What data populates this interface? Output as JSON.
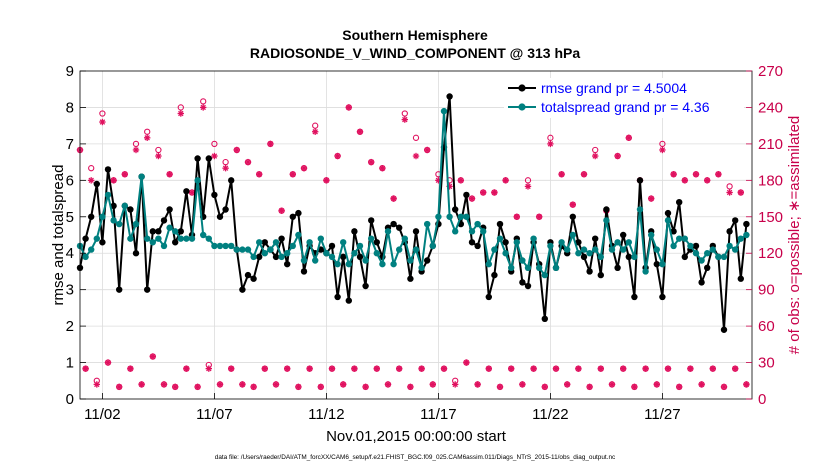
{
  "chart_data": {
    "type": "line",
    "title": "Southern Hemisphere",
    "subtitle": "RADIOSONDE_V_WIND_COMPONENT @ 313 hPa",
    "xlabel": "Nov.01,2015 00:00:00 start",
    "ylabel_left": "rmse and totalspread",
    "ylabel_right": "# of obs: o=possible; ∗=assimilated",
    "footer": "data file: /Users/raeder/DAI/ATM_forcXX/CAM6_setup/f.e21.FHIST_BGC.f09_025.CAM6assim.011/Diags_NTrS_2015-11/obs_diag_output.nc",
    "x_tick_labels": [
      "11/02",
      "11/07",
      "11/12",
      "11/17",
      "11/22",
      "11/27"
    ],
    "x_tick_days": [
      2,
      7,
      12,
      17,
      22,
      27
    ],
    "xlim_days": [
      1,
      31
    ],
    "ylim_left": [
      0,
      9
    ],
    "yticks_left": [
      0,
      1,
      2,
      3,
      4,
      5,
      6,
      7,
      8,
      9
    ],
    "ylim_right": [
      0,
      270
    ],
    "yticks_right": [
      0,
      30,
      60,
      90,
      120,
      150,
      180,
      210,
      240,
      270
    ],
    "legend_position": "top-right",
    "grid": true,
    "colors": {
      "rmse": "#000000",
      "totalspread": "#008080",
      "obs": "#E0115F",
      "legend_text": "#0000FF"
    },
    "series": [
      {
        "name": "rmse grand pr = 4.5004",
        "axis": "left",
        "x_days": [
          1.0,
          1.25,
          1.5,
          1.75,
          2.0,
          2.25,
          2.5,
          2.75,
          3.0,
          3.25,
          3.5,
          3.75,
          4.0,
          4.25,
          4.5,
          4.75,
          5.0,
          5.25,
          5.5,
          5.75,
          6.0,
          6.25,
          6.5,
          6.75,
          7.0,
          7.25,
          7.5,
          7.75,
          8.0,
          8.25,
          8.5,
          8.75,
          9.0,
          9.25,
          9.5,
          9.75,
          10.0,
          10.25,
          10.5,
          10.75,
          11.0,
          11.25,
          11.5,
          11.75,
          12.0,
          12.25,
          12.5,
          12.75,
          13.0,
          13.25,
          13.5,
          13.75,
          14.0,
          14.25,
          14.5,
          14.75,
          15.0,
          15.25,
          15.5,
          15.75,
          16.0,
          16.25,
          16.5,
          16.75,
          17.0,
          17.25,
          17.5,
          17.75,
          18.0,
          18.25,
          18.5,
          18.75,
          19.0,
          19.25,
          19.5,
          19.75,
          20.0,
          20.25,
          20.5,
          20.75,
          21.0,
          21.25,
          21.5,
          21.75,
          22.0,
          22.25,
          22.5,
          22.75,
          23.0,
          23.25,
          23.5,
          23.75,
          24.0,
          24.25,
          24.5,
          24.75,
          25.0,
          25.25,
          25.5,
          25.75,
          26.0,
          26.25,
          26.5,
          26.75,
          27.0,
          27.25,
          27.5,
          27.75,
          28.0,
          28.25,
          28.5,
          28.75,
          29.0,
          29.25,
          29.5,
          29.75,
          30.0,
          30.25,
          30.5,
          30.75
        ],
        "values": [
          3.6,
          4.4,
          5.0,
          5.9,
          4.3,
          6.3,
          5.3,
          3.0,
          5.3,
          5.2,
          4.0,
          6.1,
          3.0,
          4.6,
          4.6,
          4.9,
          5.2,
          4.3,
          4.6,
          5.7,
          4.5,
          6.6,
          5.0,
          6.6,
          5.6,
          5.0,
          5.2,
          6.0,
          4.1,
          3.0,
          3.4,
          3.3,
          3.9,
          4.3,
          4.1,
          3.9,
          4.4,
          3.7,
          5.0,
          5.1,
          3.5,
          4.2,
          4.0,
          4.1,
          4.0,
          4.2,
          2.8,
          3.9,
          2.7,
          4.6,
          3.9,
          3.1,
          4.9,
          4.3,
          3.9,
          4.7,
          4.8,
          4.7,
          4.3,
          3.3,
          4.6,
          3.5,
          3.8,
          4.2,
          4.8,
          6.9,
          8.3,
          5.2,
          4.8,
          5.6,
          4.3,
          4.2,
          4.7,
          2.8,
          3.4,
          4.8,
          4.3,
          3.5,
          4.4,
          3.2,
          3.1,
          4.3,
          3.7,
          2.2,
          4.3,
          3.6,
          4.2,
          4.0,
          5.0,
          4.3,
          3.9,
          3.5,
          4.4,
          3.4,
          5.2,
          4.2,
          3.6,
          4.5,
          3.9,
          2.8,
          6.0,
          3.6,
          4.6,
          3.7,
          2.8,
          5.1,
          4.6,
          5.4,
          3.9,
          4.1,
          4.2,
          3.2,
          3.6,
          4.2,
          3.9,
          1.9,
          4.6,
          4.9,
          3.3,
          4.8
        ],
        "marker": "filled-circle"
      },
      {
        "name": "totalspread grand pr = 4.36",
        "axis": "left",
        "x_days": [
          1.0,
          1.25,
          1.5,
          1.75,
          2.0,
          2.25,
          2.5,
          2.75,
          3.0,
          3.25,
          3.5,
          3.75,
          4.0,
          4.25,
          4.5,
          4.75,
          5.0,
          5.25,
          5.5,
          5.75,
          6.0,
          6.25,
          6.5,
          6.75,
          7.0,
          7.25,
          7.5,
          7.75,
          8.0,
          8.25,
          8.5,
          8.75,
          9.0,
          9.25,
          9.5,
          9.75,
          10.0,
          10.25,
          10.5,
          10.75,
          11.0,
          11.25,
          11.5,
          11.75,
          12.0,
          12.25,
          12.5,
          12.75,
          13.0,
          13.25,
          13.5,
          13.75,
          14.0,
          14.25,
          14.5,
          14.75,
          15.0,
          15.25,
          15.5,
          15.75,
          16.0,
          16.25,
          16.5,
          16.75,
          17.0,
          17.25,
          17.5,
          17.75,
          18.0,
          18.25,
          18.5,
          18.75,
          19.0,
          19.25,
          19.5,
          19.75,
          20.0,
          20.25,
          20.5,
          20.75,
          21.0,
          21.25,
          21.5,
          21.75,
          22.0,
          22.25,
          22.5,
          22.75,
          23.0,
          23.25,
          23.5,
          23.75,
          24.0,
          24.25,
          24.5,
          24.75,
          25.0,
          25.25,
          25.5,
          25.75,
          26.0,
          26.25,
          26.5,
          26.75,
          27.0,
          27.25,
          27.5,
          27.75,
          28.0,
          28.25,
          28.5,
          28.75,
          29.0,
          29.25,
          29.5,
          29.75,
          30.0,
          30.25,
          30.5,
          30.75
        ],
        "values": [
          4.2,
          3.9,
          4.1,
          4.4,
          5.0,
          5.6,
          4.9,
          4.8,
          5.3,
          4.4,
          4.8,
          6.1,
          4.4,
          4.3,
          4.4,
          4.2,
          4.7,
          4.6,
          4.4,
          4.4,
          4.4,
          6.0,
          4.5,
          4.4,
          4.2,
          4.2,
          4.2,
          4.2,
          4.1,
          4.1,
          4.1,
          3.9,
          4.3,
          4.0,
          4.1,
          4.3,
          3.9,
          4.0,
          4.2,
          4.5,
          3.8,
          4.3,
          3.8,
          4.4,
          4.0,
          3.9,
          3.7,
          4.3,
          3.7,
          4.0,
          4.2,
          3.8,
          4.4,
          4.0,
          3.7,
          4.6,
          3.7,
          4.1,
          4.4,
          3.8,
          4.1,
          3.6,
          4.8,
          4.2,
          5.0,
          7.9,
          5.0,
          4.6,
          5.0,
          5.0,
          4.6,
          4.8,
          4.6,
          3.7,
          4.1,
          4.4,
          4.0,
          3.6,
          4.3,
          3.8,
          3.6,
          4.4,
          3.6,
          3.4,
          4.2,
          3.6,
          4.3,
          4.1,
          4.5,
          4.0,
          4.1,
          4.0,
          4.1,
          3.9,
          4.9,
          4.1,
          4.3,
          4.1,
          4.3,
          3.9,
          5.2,
          3.5,
          4.5,
          4.1,
          3.7,
          4.9,
          4.2,
          4.4,
          4.4,
          4.2,
          4.0,
          3.8,
          4.0,
          4.1,
          3.9,
          3.9,
          4.2,
          4.1,
          4.4,
          4.5
        ],
        "marker": "filled-circle"
      },
      {
        "name": "possible",
        "axis": "right",
        "marker": "open-circle",
        "x_days": [
          1.0,
          1.25,
          1.5,
          1.75,
          2.0,
          2.25,
          2.5,
          2.75,
          3.0,
          3.25,
          3.5,
          3.75,
          4.0,
          4.25,
          4.5,
          4.75,
          5.0,
          5.25,
          5.5,
          5.75,
          6.0,
          6.25,
          6.5,
          6.75,
          7.0,
          7.25,
          7.5,
          7.75,
          8.0,
          8.25,
          8.5,
          8.75,
          9.0,
          9.25,
          9.5,
          9.75,
          10.0,
          10.25,
          10.5,
          10.75,
          11.0,
          11.25,
          11.5,
          11.75,
          12.0,
          12.25,
          12.5,
          12.75,
          13.0,
          13.25,
          13.5,
          13.75,
          14.0,
          14.25,
          14.5,
          14.75,
          15.0,
          15.25,
          15.5,
          15.75,
          16.0,
          16.25,
          16.5,
          16.75,
          17.0,
          17.25,
          17.5,
          17.75,
          18.0,
          18.25,
          18.5,
          18.75,
          19.0,
          19.25,
          19.5,
          19.75,
          20.0,
          20.25,
          20.5,
          20.75,
          21.0,
          21.25,
          21.5,
          21.75,
          22.0,
          22.25,
          22.5,
          22.75,
          23.0,
          23.25,
          23.5,
          23.75,
          24.0,
          24.25,
          24.5,
          24.75,
          25.0,
          25.25,
          25.5,
          25.75,
          26.0,
          26.25,
          26.5,
          26.75,
          27.0,
          27.25,
          27.5,
          27.75,
          28.0,
          28.25,
          28.5,
          28.75,
          29.0,
          29.25,
          29.5,
          29.75,
          30.0,
          30.25,
          30.5,
          30.75
        ],
        "values": [
          205,
          25,
          190,
          15,
          235,
          30,
          180,
          10,
          185,
          25,
          210,
          12,
          220,
          35,
          205,
          12,
          185,
          10,
          240,
          25,
          170,
          10,
          245,
          28,
          210,
          12,
          195,
          25,
          205,
          12,
          195,
          10,
          185,
          25,
          210,
          12,
          155,
          25,
          185,
          10,
          190,
          25,
          225,
          10,
          180,
          25,
          200,
          12,
          240,
          25,
          220,
          10,
          195,
          25,
          190,
          12,
          165,
          25,
          235,
          10,
          215,
          25,
          205,
          12,
          185,
          25,
          180,
          15,
          180,
          30,
          165,
          12,
          170,
          25,
          170,
          10,
          180,
          25,
          150,
          12,
          180,
          25,
          150,
          10,
          215,
          25,
          185,
          12,
          160,
          25,
          185,
          10,
          205,
          25,
          155,
          12,
          200,
          25,
          215,
          10,
          180,
          25,
          165,
          12,
          210,
          25,
          185,
          10,
          180,
          25,
          185,
          12,
          180,
          25,
          185,
          10,
          175,
          25,
          170,
          12
        ]
      },
      {
        "name": "assimilated",
        "axis": "right",
        "marker": "asterisk",
        "x_days": [
          1.0,
          1.25,
          1.5,
          1.75,
          2.0,
          2.25,
          2.5,
          2.75,
          3.0,
          3.25,
          3.5,
          3.75,
          4.0,
          4.25,
          4.5,
          4.75,
          5.0,
          5.25,
          5.5,
          5.75,
          6.0,
          6.25,
          6.5,
          6.75,
          7.0,
          7.25,
          7.5,
          7.75,
          8.0,
          8.25,
          8.5,
          8.75,
          9.0,
          9.25,
          9.5,
          9.75,
          10.0,
          10.25,
          10.5,
          10.75,
          11.0,
          11.25,
          11.5,
          11.75,
          12.0,
          12.25,
          12.5,
          12.75,
          13.0,
          13.25,
          13.5,
          13.75,
          14.0,
          14.25,
          14.5,
          14.75,
          15.0,
          15.25,
          15.5,
          15.75,
          16.0,
          16.25,
          16.5,
          16.75,
          17.0,
          17.25,
          17.5,
          17.75,
          18.0,
          18.25,
          18.5,
          18.75,
          19.0,
          19.25,
          19.5,
          19.75,
          20.0,
          20.25,
          20.5,
          20.75,
          21.0,
          21.25,
          21.5,
          21.75,
          22.0,
          22.25,
          22.5,
          22.75,
          23.0,
          23.25,
          23.5,
          23.75,
          24.0,
          24.25,
          24.5,
          24.75,
          25.0,
          25.25,
          25.5,
          25.75,
          26.0,
          26.25,
          26.5,
          26.75,
          27.0,
          27.25,
          27.5,
          27.75,
          28.0,
          28.25,
          28.5,
          28.75,
          29.0,
          29.25,
          29.5,
          29.75,
          30.0,
          30.25,
          30.5,
          30.75
        ],
        "values": [
          205,
          25,
          180,
          12,
          228,
          30,
          180,
          10,
          185,
          25,
          205,
          12,
          215,
          35,
          200,
          12,
          185,
          10,
          235,
          25,
          170,
          10,
          240,
          25,
          200,
          12,
          190,
          25,
          205,
          12,
          195,
          10,
          185,
          25,
          210,
          12,
          155,
          25,
          185,
          10,
          190,
          25,
          220,
          10,
          180,
          25,
          200,
          12,
          240,
          25,
          220,
          10,
          195,
          25,
          190,
          12,
          165,
          25,
          230,
          10,
          200,
          25,
          205,
          12,
          180,
          25,
          175,
          12,
          180,
          30,
          165,
          12,
          170,
          25,
          170,
          10,
          180,
          25,
          150,
          12,
          175,
          25,
          150,
          10,
          210,
          25,
          185,
          12,
          160,
          25,
          185,
          10,
          200,
          25,
          155,
          12,
          200,
          25,
          215,
          10,
          180,
          25,
          165,
          12,
          205,
          25,
          185,
          10,
          180,
          25,
          185,
          12,
          180,
          25,
          185,
          10,
          170,
          25,
          170,
          12
        ]
      }
    ]
  }
}
